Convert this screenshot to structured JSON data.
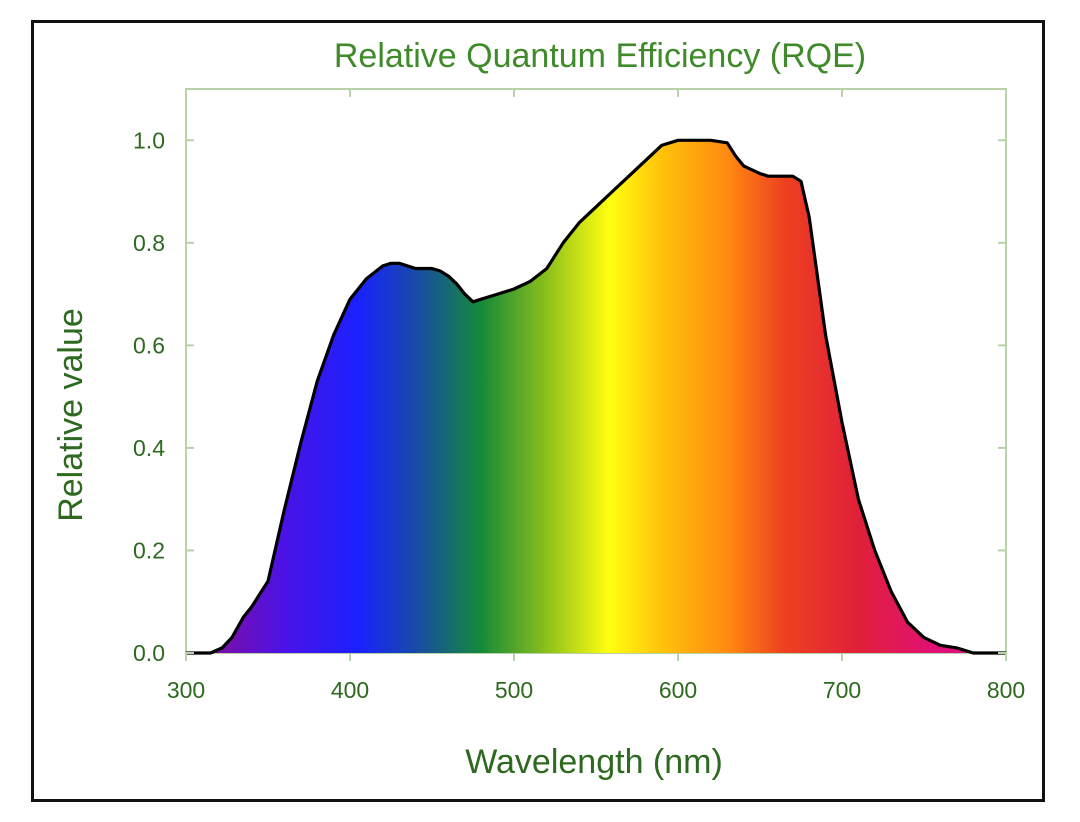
{
  "chart_data": {
    "type": "area",
    "title": "Relative Quantum Efficiency (RQE)",
    "xlabel": "Wavelength (nm)",
    "ylabel": "Relative value",
    "xlim": [
      300,
      800
    ],
    "ylim": [
      0,
      1.1
    ],
    "x_ticks": [
      300,
      400,
      500,
      600,
      700,
      800
    ],
    "y_ticks": [
      0.0,
      0.2,
      0.4,
      0.6,
      0.8,
      1.0
    ],
    "x_tick_labels": [
      "300",
      "400",
      "500",
      "600",
      "700",
      "800"
    ],
    "y_tick_labels": [
      "0.0",
      "0.2",
      "0.4",
      "0.6",
      "0.8",
      "1.0"
    ],
    "grid": false,
    "fill": "visible-spectrum gradient",
    "series": [
      {
        "x": [
          300,
          315,
          322,
          328,
          335,
          340,
          350,
          360,
          370,
          380,
          390,
          400,
          410,
          420,
          425,
          430,
          435,
          440,
          450,
          455,
          460,
          465,
          470,
          475,
          480,
          490,
          500,
          510,
          520,
          530,
          540,
          550,
          560,
          570,
          580,
          590,
          600,
          610,
          620,
          630,
          635,
          640,
          650,
          655,
          660,
          670,
          675,
          680,
          690,
          700,
          710,
          720,
          730,
          740,
          750,
          760,
          770,
          780,
          790,
          800
        ],
        "y": [
          0.0,
          0.0,
          0.01,
          0.03,
          0.07,
          0.09,
          0.14,
          0.28,
          0.41,
          0.53,
          0.62,
          0.69,
          0.73,
          0.755,
          0.76,
          0.76,
          0.755,
          0.75,
          0.75,
          0.745,
          0.735,
          0.72,
          0.7,
          0.685,
          0.69,
          0.7,
          0.71,
          0.725,
          0.75,
          0.8,
          0.84,
          0.87,
          0.9,
          0.93,
          0.96,
          0.99,
          1.0,
          1.0,
          1.0,
          0.995,
          0.97,
          0.95,
          0.935,
          0.93,
          0.93,
          0.93,
          0.92,
          0.85,
          0.62,
          0.45,
          0.3,
          0.2,
          0.12,
          0.06,
          0.03,
          0.015,
          0.01,
          0.0,
          0.0,
          0.0
        ]
      }
    ]
  },
  "colors": {
    "title": "#3f8a2a",
    "labels": "#2d6a1f",
    "axes": "#b7d2a8",
    "outline": "#000000",
    "spectrum": [
      {
        "nm": 320,
        "color": "#7a0fa8"
      },
      {
        "nm": 360,
        "color": "#4b12e6"
      },
      {
        "nm": 405,
        "color": "#1a21ff"
      },
      {
        "nm": 440,
        "color": "#184aa8"
      },
      {
        "nm": 480,
        "color": "#148a3a"
      },
      {
        "nm": 520,
        "color": "#8cc01a"
      },
      {
        "nm": 558,
        "color": "#ffff10"
      },
      {
        "nm": 590,
        "color": "#ffc20a"
      },
      {
        "nm": 630,
        "color": "#ff8a10"
      },
      {
        "nm": 665,
        "color": "#ee4020"
      },
      {
        "nm": 710,
        "color": "#e0203a"
      },
      {
        "nm": 760,
        "color": "#e0107a"
      }
    ]
  }
}
